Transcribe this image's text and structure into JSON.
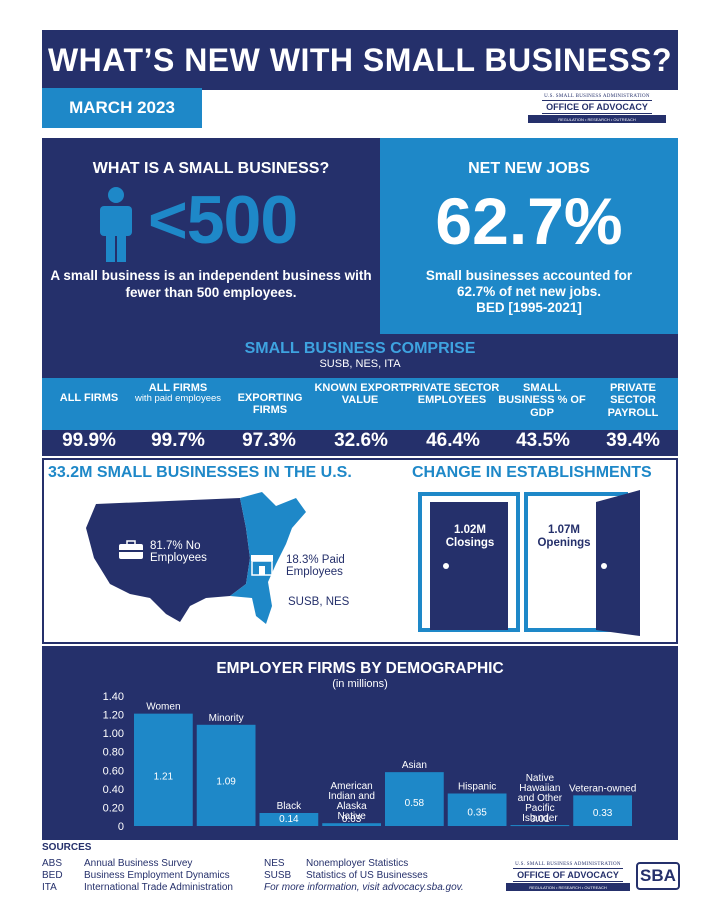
{
  "header": {
    "title": "WHAT’S NEW WITH SMALL BUSINESS?",
    "date": "MARCH 2023"
  },
  "logo": {
    "small_text": "U.S. SMALL BUSINESS ADMINISTRATION",
    "main_text": "OFFICE OF ADVOCACY",
    "strip_text": "REGULATION • RESEARCH • OUTREACH"
  },
  "small_business": {
    "heading": "WHAT IS A SMALL BUSINESS?",
    "threshold": "<500",
    "description": "A small business is an independent business with fewer than 500 employees."
  },
  "net_jobs": {
    "heading": "NET NEW JOBS",
    "value": "62.7%",
    "description": "Small businesses accounted for 62.7% of net new jobs.",
    "source": "BED [1995-2021]"
  },
  "comprise": {
    "title": "SMALL BUSINESS COMPRISE",
    "sources": "SUSB, NES, ITA",
    "columns": [
      {
        "label": "ALL FIRMS",
        "sub": "",
        "value": "99.9%"
      },
      {
        "label": "ALL FIRMS",
        "sub": "with paid employees",
        "value": "99.7%"
      },
      {
        "label": "EXPORTING FIRMS",
        "sub": "",
        "value": "97.3%"
      },
      {
        "label": "KNOWN EXPORT VALUE",
        "sub": "",
        "value": "32.6%"
      },
      {
        "label": "PRIVATE SECTOR EMPLOYEES",
        "sub": "",
        "value": "46.4%"
      },
      {
        "label": "SMALL BUSINESS % OF GDP",
        "sub": "",
        "value": "43.5%"
      },
      {
        "label": "PRIVATE SECTOR PAYROLL",
        "sub": "",
        "value": "39.4%"
      }
    ]
  },
  "map": {
    "title": "33.2M SMALL BUSINESSES IN THE U.S.",
    "no_employees": "81.7% No Employees",
    "paid_employees": "18.3% Paid Employees",
    "source": "SUSB, NES"
  },
  "establishments": {
    "title": "CHANGE IN ESTABLISHMENTS",
    "closings_value": "1.02M",
    "closings_label": "Closings",
    "openings_value": "1.07M",
    "openings_label": "Openings"
  },
  "chart_data": {
    "type": "bar",
    "title": "EMPLOYER FIRMS BY DEMOGRAPHIC",
    "subtitle": "(in millions)",
    "categories": [
      "Women",
      "Minority",
      "Black",
      "American Indian and Alaska Native",
      "Asian",
      "Hispanic",
      "Native Hawaiian and Other Pacific Islander",
      "Veteran-owned"
    ],
    "values": [
      1.21,
      1.09,
      0.14,
      0.03,
      0.58,
      0.35,
      0.01,
      0.33
    ],
    "value_labels": [
      "1.21",
      "1.09",
      "0.14",
      "0.03",
      "0.58",
      "0.35",
      "0.01",
      "0.33"
    ],
    "ylim": [
      0,
      1.4
    ],
    "yticks": [
      "0",
      "0.20",
      "0.40",
      "0.60",
      "0.80",
      "1.00",
      "1.20",
      "1.40"
    ],
    "color": "#1e88c8"
  },
  "sources": {
    "title": "SOURCES",
    "items": [
      {
        "abbr": "ABS",
        "name": "Annual Business Survey"
      },
      {
        "abbr": "BED",
        "name": "Business Employment Dynamics"
      },
      {
        "abbr": "ITA",
        "name": "International Trade Administration"
      },
      {
        "abbr": "NES",
        "name": "Nonemployer Statistics"
      },
      {
        "abbr": "SUSB",
        "name": "Statistics of US Businesses"
      }
    ],
    "more_info": "For more information, visit advocacy.sba.gov."
  },
  "sba_logo": "SBA",
  "colors": {
    "navy": "#25306b",
    "blue": "#1e88c8",
    "light_blue": "#3ea3e0"
  }
}
